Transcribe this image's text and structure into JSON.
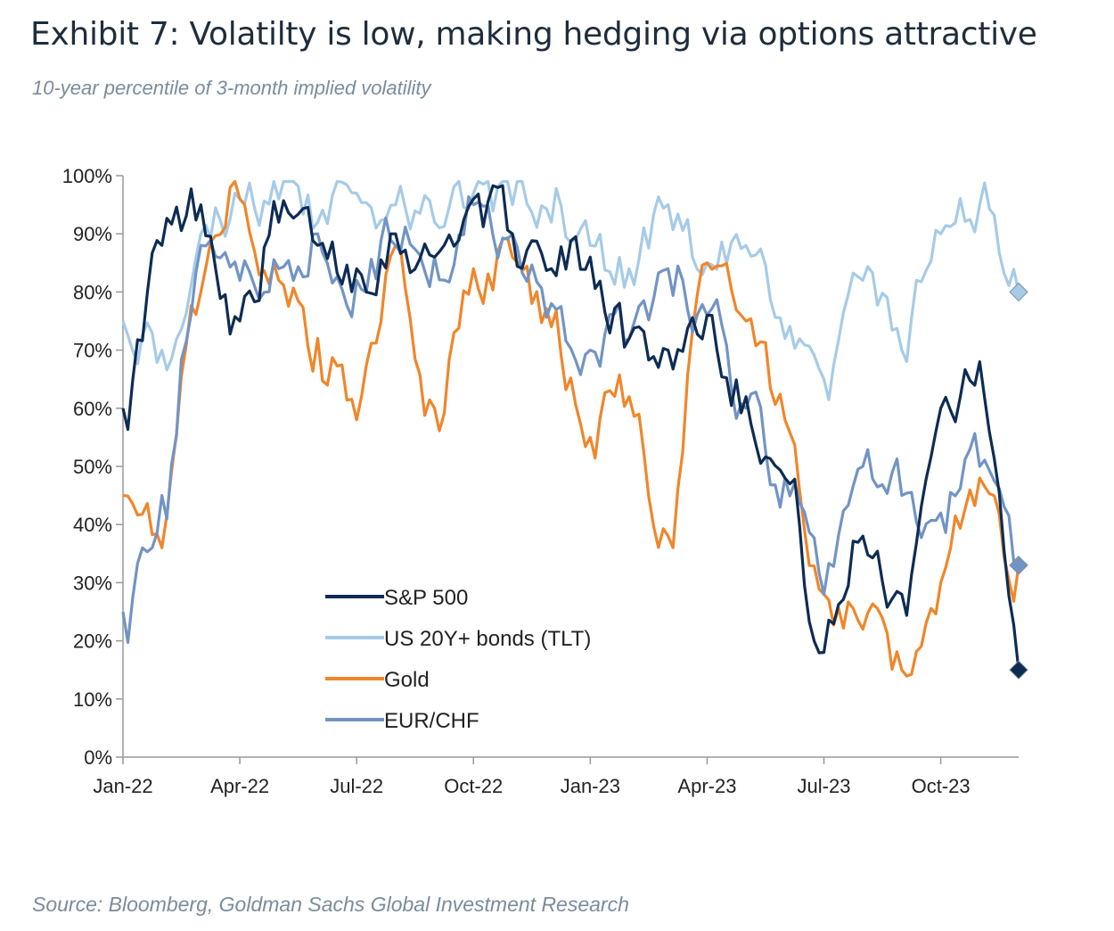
{
  "header": {
    "title": "Exhibit 7: Volatilty is low, making hedging via options attractive",
    "subtitle": "10-year percentile of 3-month implied volatility"
  },
  "footer": {
    "source": "Source: Bloomberg, Goldman Sachs Global Investment Research"
  },
  "chart_data": {
    "type": "line",
    "title": "Exhibit 7: Volatilty is low, making hedging via options attractive",
    "subtitle": "10-year percentile of 3-month implied volatility",
    "xlabel": "",
    "ylabel": "",
    "ylim": [
      0,
      100
    ],
    "y_ticks": [
      0,
      10,
      20,
      30,
      40,
      50,
      60,
      70,
      80,
      90,
      100
    ],
    "y_tick_labels": [
      "0%",
      "10%",
      "20%",
      "30%",
      "40%",
      "50%",
      "60%",
      "70%",
      "80%",
      "90%",
      "100%"
    ],
    "x_ticks": [
      "2022-01",
      "2022-04",
      "2022-07",
      "2022-10",
      "2023-01",
      "2023-04",
      "2023-07",
      "2023-10"
    ],
    "x_tick_labels": [
      "Jan-22",
      "Apr-22",
      "Jul-22",
      "Oct-22",
      "Jan-23",
      "Apr-23",
      "Jul-23",
      "Oct-23"
    ],
    "x_range": [
      "2022-01",
      "2023-12"
    ],
    "grid": false,
    "legend_position": "bottom-left",
    "end_markers": "diamond",
    "x": [
      "2022-01",
      "2022-02",
      "2022-03",
      "2022-04",
      "2022-05",
      "2022-06",
      "2022-07",
      "2022-08",
      "2022-09",
      "2022-10",
      "2022-11",
      "2022-12",
      "2023-01",
      "2023-02",
      "2023-03",
      "2023-04",
      "2023-05",
      "2023-06",
      "2023-07",
      "2023-08",
      "2023-09",
      "2023-10",
      "2023-11",
      "2023-12"
    ],
    "series": [
      {
        "name": "S&P 500",
        "color": "#0d2c54",
        "values": [
          60,
          88,
          95,
          75,
          92,
          88,
          84,
          90,
          86,
          96,
          90,
          84,
          86,
          72,
          70,
          76,
          62,
          48,
          18,
          38,
          28,
          60,
          68,
          15
        ]
      },
      {
        "name": "US 20Y+ bonds (TLT)",
        "color": "#a6cbe8",
        "values": [
          75,
          70,
          90,
          96,
          96,
          92,
          97,
          95,
          92,
          97,
          95,
          92,
          88,
          84,
          95,
          85,
          88,
          72,
          65,
          82,
          70,
          90,
          95,
          80
        ]
      },
      {
        "name": "Gold",
        "color": "#f0862a",
        "values": [
          45,
          36,
          80,
          96,
          82,
          72,
          58,
          88,
          60,
          84,
          86,
          74,
          55,
          62,
          38,
          85,
          75,
          58,
          28,
          22,
          15,
          30,
          48,
          33
        ]
      },
      {
        "name": "EUR/CHF",
        "color": "#7294c4",
        "values": [
          25,
          45,
          88,
          82,
          84,
          90,
          82,
          88,
          86,
          95,
          90,
          78,
          70,
          72,
          84,
          76,
          60,
          48,
          28,
          50,
          45,
          42,
          50,
          33
        ]
      }
    ]
  }
}
